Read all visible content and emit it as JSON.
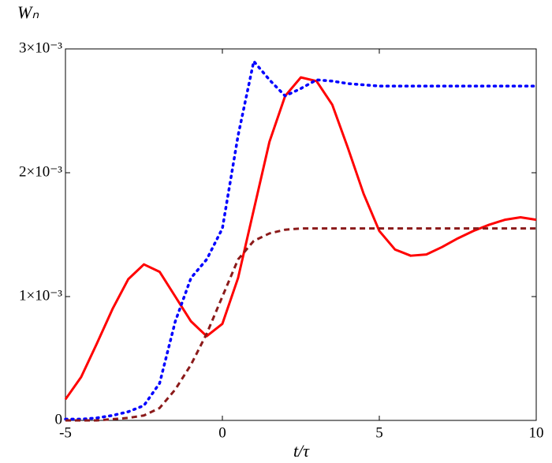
{
  "chart_data": {
    "type": "line",
    "y_label": "Wₙ",
    "x_label": "t/τ",
    "x": [
      -5,
      -4.5,
      -4,
      -3.5,
      -3,
      -2.5,
      -2,
      -1.5,
      -1,
      -0.5,
      0,
      0.5,
      1,
      1.5,
      2,
      2.5,
      3,
      3.5,
      4,
      4.5,
      5,
      5.5,
      6,
      6.5,
      7,
      7.5,
      8,
      8.5,
      9,
      9.5,
      10
    ],
    "series": [
      {
        "color": "#ff0000",
        "style": "solid",
        "values": [
          0.00017,
          0.00035,
          0.00062,
          0.0009,
          0.00114,
          0.00126,
          0.0012,
          0.001,
          0.0008,
          0.00068,
          0.00078,
          0.00115,
          0.0017,
          0.00225,
          0.00262,
          0.00277,
          0.00274,
          0.00255,
          0.0022,
          0.00183,
          0.00153,
          0.00138,
          0.00133,
          0.00134,
          0.0014,
          0.00147,
          0.00153,
          0.00158,
          0.00162,
          0.00164,
          0.00162
        ]
      },
      {
        "color": "#0000ff",
        "style": "dotted",
        "values": [
          1e-05,
          1e-05,
          2e-05,
          4e-05,
          7e-05,
          0.00012,
          0.0003,
          0.0008,
          0.00115,
          0.0013,
          0.00155,
          0.0023,
          0.0029,
          0.00275,
          0.00262,
          0.00268,
          0.00275,
          0.00274,
          0.00272,
          0.00271,
          0.0027,
          0.0027,
          0.0027,
          0.0027,
          0.0027,
          0.0027,
          0.0027,
          0.0027,
          0.0027,
          0.0027,
          0.0027
        ]
      },
      {
        "color": "#8b1a1a",
        "style": "dashed",
        "values": [
          0,
          0,
          0,
          1e-05,
          2e-05,
          4e-05,
          0.0001,
          0.00025,
          0.00045,
          0.0007,
          0.001,
          0.0013,
          0.00145,
          0.00151,
          0.00154,
          0.00155,
          0.00155,
          0.00155,
          0.00155,
          0.00155,
          0.00155,
          0.00155,
          0.00155,
          0.00155,
          0.00155,
          0.00155,
          0.00155,
          0.00155,
          0.00155,
          0.00155,
          0.00155
        ]
      }
    ],
    "xlim": [
      -5,
      10
    ],
    "xticks": [
      -5,
      0,
      5,
      10
    ],
    "ylim": [
      0,
      0.003
    ],
    "yticks": [
      0,
      {
        "value": 0.001,
        "label": "1×10⁻³"
      },
      {
        "value": 0.002,
        "label": "2×10⁻³"
      },
      {
        "value": 0.003,
        "label": "3×10⁻³"
      }
    ]
  }
}
